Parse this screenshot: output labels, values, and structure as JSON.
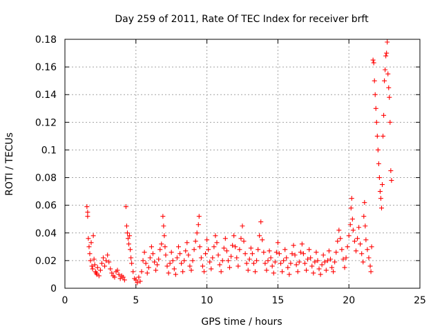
{
  "chart_data": {
    "type": "scatter",
    "title": "Day 259 of 2011, Rate Of TEC Index for receiver brft",
    "xlabel": "GPS time / hours",
    "ylabel": "ROTI / TECUs",
    "xlim": [
      0,
      25
    ],
    "ylim": [
      0,
      0.18
    ],
    "xticks": [
      0,
      5,
      10,
      15,
      20,
      25
    ],
    "xtick_labels": [
      "0",
      "5",
      "10",
      "15",
      "20",
      "25"
    ],
    "yticks": [
      0,
      0.02,
      0.04,
      0.06,
      0.08,
      0.1,
      0.12,
      0.14,
      0.16,
      0.18
    ],
    "ytick_labels": [
      "0",
      "0.02",
      "0.04",
      "0.06",
      "0.08",
      "0.1",
      "0.12",
      "0.14",
      "0.16",
      "0.18"
    ],
    "grid": true,
    "marker": "+",
    "color": "#ff0000",
    "series": [
      {
        "name": "ROTI",
        "points": [
          [
            1.55,
            0.059
          ],
          [
            1.6,
            0.055
          ],
          [
            1.6,
            0.052
          ],
          [
            1.65,
            0.036
          ],
          [
            1.7,
            0.03
          ],
          [
            1.75,
            0.025
          ],
          [
            1.8,
            0.02
          ],
          [
            1.85,
            0.033
          ],
          [
            1.9,
            0.016
          ],
          [
            1.95,
            0.014
          ],
          [
            2.0,
            0.038
          ],
          [
            2.05,
            0.021
          ],
          [
            2.1,
            0.017
          ],
          [
            2.15,
            0.012
          ],
          [
            2.2,
            0.011
          ],
          [
            2.25,
            0.01
          ],
          [
            2.3,
            0.015
          ],
          [
            2.4,
            0.009
          ],
          [
            2.5,
            0.013
          ],
          [
            2.6,
            0.018
          ],
          [
            2.7,
            0.022
          ],
          [
            2.8,
            0.016
          ],
          [
            2.9,
            0.02
          ],
          [
            3.0,
            0.024
          ],
          [
            3.1,
            0.019
          ],
          [
            3.2,
            0.014
          ],
          [
            3.3,
            0.011
          ],
          [
            3.4,
            0.009
          ],
          [
            3.5,
            0.008
          ],
          [
            3.6,
            0.012
          ],
          [
            3.7,
            0.013
          ],
          [
            3.8,
            0.01
          ],
          [
            3.9,
            0.007
          ],
          [
            4.0,
            0.009
          ],
          [
            4.1,
            0.008
          ],
          [
            4.2,
            0.006
          ],
          [
            4.3,
            0.059
          ],
          [
            4.35,
            0.045
          ],
          [
            4.4,
            0.04
          ],
          [
            4.45,
            0.036
          ],
          [
            4.5,
            0.032
          ],
          [
            4.55,
            0.038
          ],
          [
            4.6,
            0.028
          ],
          [
            4.65,
            0.022
          ],
          [
            4.7,
            0.018
          ],
          [
            4.8,
            0.012
          ],
          [
            4.9,
            0.007
          ],
          [
            5.0,
            0.006
          ],
          [
            5.1,
            0.004
          ],
          [
            5.2,
            0.008
          ],
          [
            5.3,
            0.005
          ],
          [
            5.4,
            0.012
          ],
          [
            5.5,
            0.02
          ],
          [
            5.6,
            0.026
          ],
          [
            5.7,
            0.018
          ],
          [
            5.8,
            0.011
          ],
          [
            5.9,
            0.015
          ],
          [
            6.0,
            0.022
          ],
          [
            6.1,
            0.03
          ],
          [
            6.2,
            0.025
          ],
          [
            6.3,
            0.019
          ],
          [
            6.4,
            0.013
          ],
          [
            6.5,
            0.017
          ],
          [
            6.6,
            0.021
          ],
          [
            6.7,
            0.028
          ],
          [
            6.8,
            0.032
          ],
          [
            6.9,
            0.052
          ],
          [
            6.95,
            0.045
          ],
          [
            7.0,
            0.038
          ],
          [
            7.05,
            0.03
          ],
          [
            7.1,
            0.024
          ],
          [
            7.2,
            0.016
          ],
          [
            7.3,
            0.011
          ],
          [
            7.4,
            0.018
          ],
          [
            7.5,
            0.026
          ],
          [
            7.6,
            0.02
          ],
          [
            7.7,
            0.014
          ],
          [
            7.8,
            0.01
          ],
          [
            7.9,
            0.022
          ],
          [
            8.0,
            0.03
          ],
          [
            8.1,
            0.025
          ],
          [
            8.2,
            0.018
          ],
          [
            8.3,
            0.012
          ],
          [
            8.4,
            0.02
          ],
          [
            8.5,
            0.027
          ],
          [
            8.6,
            0.033
          ],
          [
            8.7,
            0.024
          ],
          [
            8.8,
            0.016
          ],
          [
            8.9,
            0.013
          ],
          [
            9.0,
            0.02
          ],
          [
            9.1,
            0.028
          ],
          [
            9.2,
            0.034
          ],
          [
            9.3,
            0.04
          ],
          [
            9.4,
            0.046
          ],
          [
            9.45,
            0.052
          ],
          [
            9.5,
            0.03
          ],
          [
            9.6,
            0.022
          ],
          [
            9.7,
            0.016
          ],
          [
            9.8,
            0.012
          ],
          [
            9.9,
            0.025
          ],
          [
            10.0,
            0.035
          ],
          [
            10.1,
            0.028
          ],
          [
            10.2,
            0.019
          ],
          [
            10.3,
            0.014
          ],
          [
            10.4,
            0.022
          ],
          [
            10.5,
            0.03
          ],
          [
            10.6,
            0.038
          ],
          [
            10.7,
            0.033
          ],
          [
            10.8,
            0.024
          ],
          [
            10.9,
            0.017
          ],
          [
            11.0,
            0.012
          ],
          [
            11.1,
            0.02
          ],
          [
            11.2,
            0.029
          ],
          [
            11.3,
            0.036
          ],
          [
            11.4,
            0.027
          ],
          [
            11.5,
            0.02
          ],
          [
            11.6,
            0.015
          ],
          [
            11.7,
            0.023
          ],
          [
            11.8,
            0.031
          ],
          [
            11.9,
            0.038
          ],
          [
            12.0,
            0.03
          ],
          [
            12.1,
            0.022
          ],
          [
            12.2,
            0.016
          ],
          [
            12.3,
            0.028
          ],
          [
            12.4,
            0.036
          ],
          [
            12.5,
            0.045
          ],
          [
            12.6,
            0.034
          ],
          [
            12.7,
            0.025
          ],
          [
            12.8,
            0.018
          ],
          [
            12.9,
            0.013
          ],
          [
            13.0,
            0.021
          ],
          [
            13.1,
            0.029
          ],
          [
            13.2,
            0.025
          ],
          [
            13.3,
            0.018
          ],
          [
            13.4,
            0.012
          ],
          [
            13.5,
            0.02
          ],
          [
            13.6,
            0.028
          ],
          [
            13.7,
            0.038
          ],
          [
            13.8,
            0.048
          ],
          [
            13.9,
            0.035
          ],
          [
            14.0,
            0.026
          ],
          [
            14.1,
            0.018
          ],
          [
            14.2,
            0.013
          ],
          [
            14.3,
            0.02
          ],
          [
            14.4,
            0.027
          ],
          [
            14.5,
            0.022
          ],
          [
            14.6,
            0.016
          ],
          [
            14.7,
            0.011
          ],
          [
            14.8,
            0.019
          ],
          [
            14.9,
            0.026
          ],
          [
            15.0,
            0.033
          ],
          [
            15.1,
            0.025
          ],
          [
            15.2,
            0.018
          ],
          [
            15.3,
            0.012
          ],
          [
            15.4,
            0.02
          ],
          [
            15.5,
            0.028
          ],
          [
            15.6,
            0.022
          ],
          [
            15.7,
            0.015
          ],
          [
            15.8,
            0.01
          ],
          [
            15.9,
            0.018
          ],
          [
            16.0,
            0.025
          ],
          [
            16.1,
            0.031
          ],
          [
            16.2,
            0.024
          ],
          [
            16.3,
            0.017
          ],
          [
            16.4,
            0.012
          ],
          [
            16.5,
            0.019
          ],
          [
            16.6,
            0.026
          ],
          [
            16.7,
            0.032
          ],
          [
            16.8,
            0.025
          ],
          [
            16.9,
            0.018
          ],
          [
            17.0,
            0.013
          ],
          [
            17.1,
            0.021
          ],
          [
            17.2,
            0.028
          ],
          [
            17.3,
            0.022
          ],
          [
            17.4,
            0.016
          ],
          [
            17.5,
            0.011
          ],
          [
            17.6,
            0.019
          ],
          [
            17.7,
            0.026
          ],
          [
            17.8,
            0.02
          ],
          [
            17.9,
            0.014
          ],
          [
            18.0,
            0.01
          ],
          [
            18.1,
            0.017
          ],
          [
            18.2,
            0.024
          ],
          [
            18.3,
            0.019
          ],
          [
            18.4,
            0.013
          ],
          [
            18.5,
            0.02
          ],
          [
            18.6,
            0.027
          ],
          [
            18.7,
            0.021
          ],
          [
            18.8,
            0.015
          ],
          [
            18.9,
            0.012
          ],
          [
            19.0,
            0.019
          ],
          [
            19.1,
            0.026
          ],
          [
            19.2,
            0.034
          ],
          [
            19.3,
            0.042
          ],
          [
            19.4,
            0.036
          ],
          [
            19.5,
            0.028
          ],
          [
            19.6,
            0.021
          ],
          [
            19.7,
            0.015
          ],
          [
            19.8,
            0.022
          ],
          [
            19.9,
            0.03
          ],
          [
            20.0,
            0.038
          ],
          [
            20.1,
            0.046
          ],
          [
            20.15,
            0.058
          ],
          [
            20.2,
            0.065
          ],
          [
            20.25,
            0.05
          ],
          [
            20.3,
            0.042
          ],
          [
            20.4,
            0.034
          ],
          [
            20.5,
            0.027
          ],
          [
            20.6,
            0.036
          ],
          [
            20.7,
            0.044
          ],
          [
            20.8,
            0.032
          ],
          [
            20.9,
            0.025
          ],
          [
            21.0,
            0.019
          ],
          [
            21.05,
            0.052
          ],
          [
            21.1,
            0.062
          ],
          [
            21.15,
            0.045
          ],
          [
            21.2,
            0.035
          ],
          [
            21.3,
            0.028
          ],
          [
            21.4,
            0.022
          ],
          [
            21.5,
            0.016
          ],
          [
            21.55,
            0.012
          ],
          [
            21.6,
            0.03
          ],
          [
            21.7,
            0.165
          ],
          [
            21.75,
            0.163
          ],
          [
            21.8,
            0.15
          ],
          [
            21.85,
            0.14
          ],
          [
            21.9,
            0.13
          ],
          [
            21.95,
            0.12
          ],
          [
            22.0,
            0.11
          ],
          [
            22.05,
            0.1
          ],
          [
            22.1,
            0.09
          ],
          [
            22.15,
            0.08
          ],
          [
            22.2,
            0.07
          ],
          [
            22.25,
            0.065
          ],
          [
            22.3,
            0.058
          ],
          [
            22.35,
            0.075
          ],
          [
            22.4,
            0.11
          ],
          [
            22.45,
            0.125
          ],
          [
            22.5,
            0.15
          ],
          [
            22.55,
            0.158
          ],
          [
            22.6,
            0.168
          ],
          [
            22.65,
            0.17
          ],
          [
            22.7,
            0.178
          ],
          [
            22.75,
            0.155
          ],
          [
            22.8,
            0.145
          ],
          [
            22.85,
            0.138
          ],
          [
            22.9,
            0.12
          ],
          [
            22.95,
            0.085
          ],
          [
            23.0,
            0.078
          ]
        ]
      }
    ]
  }
}
